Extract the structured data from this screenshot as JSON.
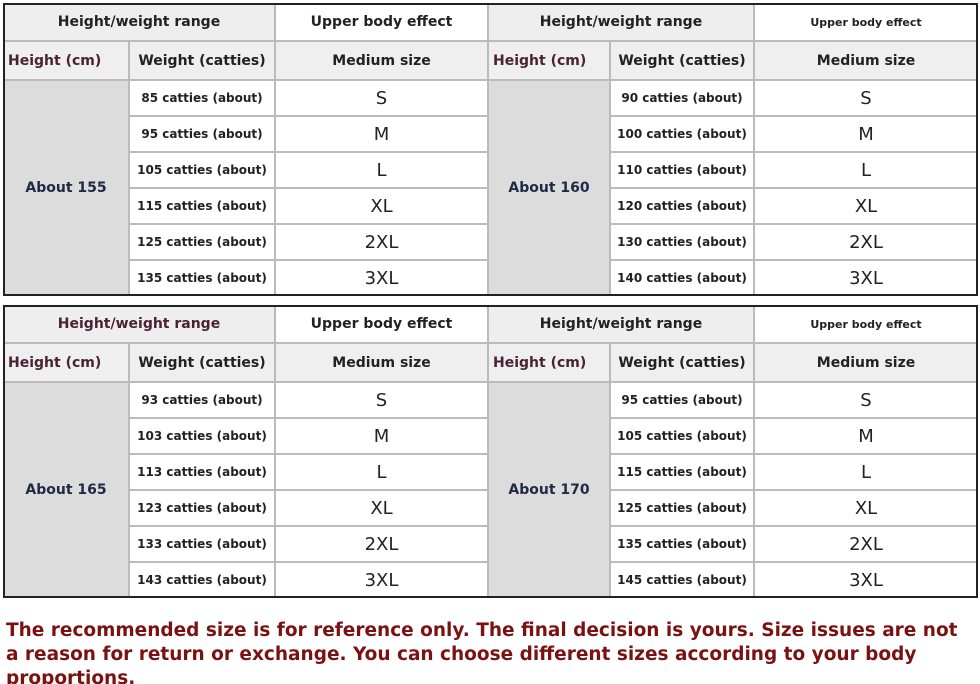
{
  "tables": [
    {
      "halves": [
        {
          "range_header": "Height/weight range",
          "effect_header": "Upper body effect",
          "height_header": "Height (cm)",
          "weight_header": "Weight (catties)",
          "size_header": "Medium size",
          "height": "About 155",
          "rows": [
            [
              "85 catties (about)",
              "S"
            ],
            [
              "95 catties (about)",
              "M"
            ],
            [
              "105 catties (about)",
              "L"
            ],
            [
              "115 catties (about)",
              "XL"
            ],
            [
              "125 catties (about)",
              "2XL"
            ],
            [
              "135 catties (about)",
              "3XL"
            ]
          ]
        },
        {
          "range_header": "Height/weight range",
          "effect_header": "Upper body effect",
          "height_header": "Height (cm)",
          "weight_header": "Weight (catties)",
          "size_header": "Medium size",
          "height": "About 160",
          "rows": [
            [
              "90 catties (about)",
              "S"
            ],
            [
              "100 catties (about)",
              "M"
            ],
            [
              "110 catties (about)",
              "L"
            ],
            [
              "120 catties (about)",
              "XL"
            ],
            [
              "130 catties (about)",
              "2XL"
            ],
            [
              "140 catties (about)",
              "3XL"
            ]
          ]
        }
      ]
    },
    {
      "halves": [
        {
          "range_header": "Height/weight range",
          "effect_header": "Upper body effect",
          "height_header": "Height (cm)",
          "weight_header": "Weight (catties)",
          "size_header": "Medium size",
          "height": "About 165",
          "rows": [
            [
              "93 catties (about)",
              "S"
            ],
            [
              "103 catties (about)",
              "M"
            ],
            [
              "113 catties (about)",
              "L"
            ],
            [
              "123 catties (about)",
              "XL"
            ],
            [
              "133 catties (about)",
              "2XL"
            ],
            [
              "143 catties (about)",
              "3XL"
            ]
          ]
        },
        {
          "range_header": "Height/weight range",
          "effect_header": "Upper body effect",
          "height_header": "Height (cm)",
          "weight_header": "Weight (catties)",
          "size_header": "Medium size",
          "height": "About 170",
          "rows": [
            [
              "95 catties (about)",
              "S"
            ],
            [
              "105 catties (about)",
              "M"
            ],
            [
              "115 catties (about)",
              "L"
            ],
            [
              "125 catties (about)",
              "XL"
            ],
            [
              "135 catties (about)",
              "2XL"
            ],
            [
              "145 catties (about)",
              "3XL"
            ]
          ]
        }
      ]
    }
  ],
  "note": "The recommended size is for reference only. The final decision is yours. Size issues are not a reason for return or exchange. You can choose different sizes according to your body proportions."
}
